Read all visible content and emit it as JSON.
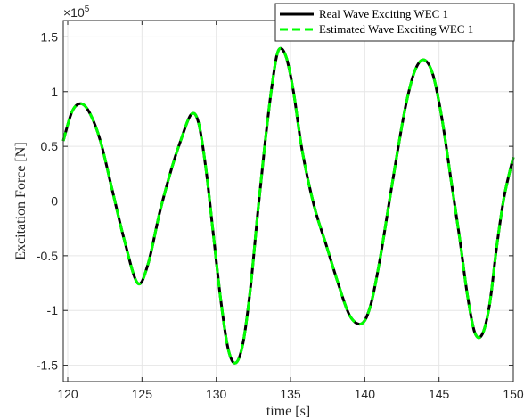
{
  "chart_data": {
    "type": "line",
    "title": "",
    "xlabel": "time [s]",
    "ylabel": "Excitation Force [N]",
    "y_exponent_label": "×10",
    "y_exponent_power": "5",
    "xlim": [
      119.7,
      150
    ],
    "ylim": [
      -1.65,
      1.65
    ],
    "grid": true,
    "legend_placement": "top-right",
    "x_ticks": [
      120,
      125,
      130,
      135,
      140,
      145,
      150
    ],
    "x_tick_labels": [
      "120",
      "125",
      "130",
      "135",
      "140",
      "145",
      "150"
    ],
    "y_ticks": [
      -1.5,
      -1,
      -0.5,
      0,
      0.5,
      1,
      1.5
    ],
    "y_tick_labels": [
      "-1.5",
      "-1",
      "-0.5",
      "0",
      "0.5",
      "1",
      "1.5"
    ],
    "colors": {
      "real": "#000000",
      "estimated": "#00ff00"
    },
    "series": [
      {
        "name": "Real Wave Exciting WEC 1",
        "style": "solid",
        "x": [
          119.7,
          120.3,
          120.9,
          121.5,
          122.2,
          123,
          123.8,
          124.7,
          125.4,
          126.2,
          127,
          127.6,
          128.3,
          128.8,
          129.3,
          129.8,
          130.3,
          130.8,
          131.3,
          131.8,
          132.3,
          132.8,
          133.3,
          133.8,
          134.2,
          134.7,
          135.2,
          135.8,
          136.6,
          137.4,
          138.2,
          139,
          139.8,
          140.4,
          141,
          141.6,
          142.2,
          142.8,
          143.4,
          144,
          144.6,
          145.2,
          145.8,
          146.4,
          146.9,
          147.4,
          147.9,
          148.4,
          148.9,
          149.4,
          150
        ],
        "values": [
          0.55,
          0.82,
          0.89,
          0.8,
          0.55,
          0.1,
          -0.35,
          -0.75,
          -0.58,
          -0.1,
          0.3,
          0.55,
          0.79,
          0.72,
          0.3,
          -0.3,
          -0.9,
          -1.35,
          -1.48,
          -1.3,
          -0.8,
          -0.1,
          0.55,
          1.1,
          1.38,
          1.32,
          1.0,
          0.45,
          -0.05,
          -0.4,
          -0.75,
          -1.05,
          -1.12,
          -0.95,
          -0.55,
          -0.05,
          0.45,
          0.9,
          1.2,
          1.29,
          1.15,
          0.75,
          0.2,
          -0.35,
          -0.85,
          -1.2,
          -1.22,
          -0.95,
          -0.4,
          0.05,
          0.4
        ]
      },
      {
        "name": "Estimated Wave Exciting WEC 1",
        "style": "dashed",
        "x": [
          119.7,
          120.3,
          120.9,
          121.5,
          122.2,
          123,
          123.8,
          124.7,
          125.4,
          126.2,
          127,
          127.6,
          128.3,
          128.8,
          129.3,
          129.8,
          130.3,
          130.8,
          131.3,
          131.8,
          132.3,
          132.8,
          133.3,
          133.8,
          134.2,
          134.7,
          135.2,
          135.8,
          136.6,
          137.4,
          138.2,
          139,
          139.8,
          140.4,
          141,
          141.6,
          142.2,
          142.8,
          143.4,
          144,
          144.6,
          145.2,
          145.8,
          146.4,
          146.9,
          147.4,
          147.9,
          148.4,
          148.9,
          149.4,
          150
        ],
        "values": [
          0.55,
          0.82,
          0.89,
          0.8,
          0.55,
          0.1,
          -0.35,
          -0.75,
          -0.58,
          -0.1,
          0.3,
          0.55,
          0.79,
          0.72,
          0.3,
          -0.3,
          -0.9,
          -1.35,
          -1.48,
          -1.3,
          -0.8,
          -0.1,
          0.55,
          1.1,
          1.38,
          1.32,
          1.0,
          0.45,
          -0.05,
          -0.4,
          -0.75,
          -1.05,
          -1.12,
          -0.95,
          -0.55,
          -0.05,
          0.45,
          0.9,
          1.2,
          1.29,
          1.15,
          0.75,
          0.2,
          -0.35,
          -0.85,
          -1.2,
          -1.22,
          -0.95,
          -0.4,
          0.05,
          0.4
        ]
      }
    ]
  }
}
